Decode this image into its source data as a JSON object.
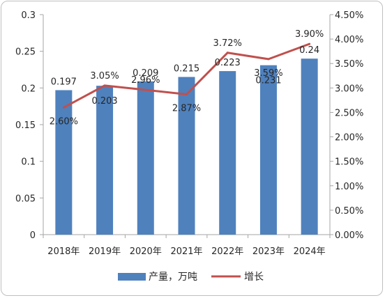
{
  "chart_data": {
    "type": "bar",
    "categories": [
      "2018年",
      "2019年",
      "2020年",
      "2021年",
      "2022年",
      "2023年",
      "2024年"
    ],
    "series": [
      {
        "name": "产量，万吨",
        "type": "bar",
        "axis": "left",
        "color": "#4f81bd",
        "values": [
          0.197,
          0.203,
          0.209,
          0.215,
          0.223,
          0.231,
          0.24
        ],
        "labels": [
          "0.197",
          "0.203",
          "0.209",
          "0.215",
          "0.223",
          "0.231",
          "0.24"
        ]
      },
      {
        "name": "增长",
        "type": "line",
        "axis": "right",
        "color": "#c0504d",
        "values": [
          2.6,
          3.05,
          2.96,
          2.87,
          3.72,
          3.59,
          3.9
        ],
        "labels": [
          "2.60%",
          "3.05%",
          "2.96%",
          "2.87%",
          "3.72%",
          "3.59%",
          "3.90%"
        ]
      }
    ],
    "y_left": {
      "range": [
        0,
        0.3
      ],
      "ticks": [
        "0",
        "0.05",
        "0.1",
        "0.15",
        "0.2",
        "0.25",
        "0.3"
      ]
    },
    "y_right": {
      "range": [
        0,
        4.5
      ],
      "unit": "%",
      "ticks": [
        "0.00%",
        "0.50%",
        "1.00%",
        "1.50%",
        "2.00%",
        "2.50%",
        "3.00%",
        "3.50%",
        "4.00%",
        "4.50%"
      ]
    },
    "grid": false,
    "legend_position": "bottom",
    "title": "",
    "xlabel": "",
    "ylabel": ""
  }
}
